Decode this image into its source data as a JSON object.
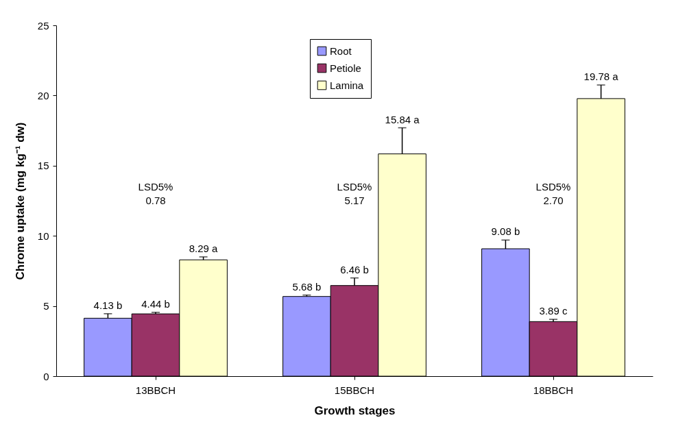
{
  "chart_data": {
    "type": "bar",
    "xlabel": "Growth stages",
    "ylabel": "Chrome uptake (mg kg⁻¹ dw)",
    "categories": [
      "13BBCH",
      "15BBCH",
      "18BBCH"
    ],
    "series": [
      {
        "name": "Root",
        "color": "#9999ff",
        "values": [
          4.13,
          5.68,
          9.08
        ],
        "errors": [
          [
            4.13,
            4.45
          ],
          [
            5.68,
            5.78
          ],
          [
            9.08,
            9.7
          ]
        ],
        "value_labels": [
          "4.13 b",
          "5.68 b",
          "9.08 b"
        ]
      },
      {
        "name": "Petiole",
        "color": "#993366",
        "values": [
          4.44,
          6.46,
          3.89
        ],
        "errors": [
          [
            4.44,
            4.55
          ],
          [
            6.46,
            7.0
          ],
          [
            3.89,
            4.05
          ]
        ],
        "value_labels": [
          "4.44 b",
          "6.46 b",
          "3.89 c"
        ]
      },
      {
        "name": "Lamina",
        "color": "#ffffcc",
        "values": [
          8.29,
          15.84,
          19.78
        ],
        "errors": [
          [
            8.29,
            8.5
          ],
          [
            15.84,
            17.7
          ],
          [
            19.78,
            20.75
          ]
        ],
        "value_labels": [
          "8.29 a",
          "15.84 a",
          "19.78 a"
        ]
      }
    ],
    "ylim": [
      0,
      25
    ],
    "yticks": [
      0,
      5,
      10,
      15,
      20,
      25
    ],
    "grid": false,
    "legend": "top",
    "annotations": [
      "LSD5%\n0.78",
      "LSD5%\n5.17",
      "LSD5%\n2.70"
    ]
  }
}
